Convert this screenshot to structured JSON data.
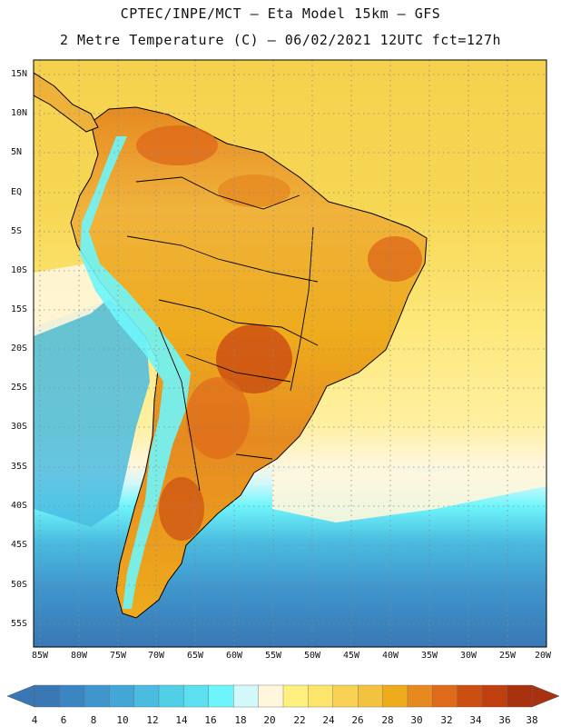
{
  "header": {
    "title_line1": "CPTEC/INPE/MCT –  Eta Model 15km – GFS",
    "title_line2": "2 Metre Temperature (C) – 06/02/2021 12UTC fct=127h"
  },
  "axes": {
    "lat_labels": [
      "15N",
      "10N",
      "5N",
      "EQ",
      "5S",
      "10S",
      "15S",
      "20S",
      "25S",
      "30S",
      "35S",
      "40S",
      "45S",
      "50S",
      "55S"
    ],
    "lon_labels": [
      "85W",
      "80W",
      "75W",
      "70W",
      "65W",
      "60W",
      "55W",
      "50W",
      "45W",
      "40W",
      "35W",
      "30W",
      "25W",
      "20W"
    ]
  },
  "colorbar": {
    "values": [
      "4",
      "6",
      "8",
      "10",
      "12",
      "14",
      "16",
      "18",
      "20",
      "22",
      "24",
      "26",
      "28",
      "30",
      "32",
      "34",
      "36",
      "38"
    ],
    "colors": [
      "#3a78b5",
      "#3b85c2",
      "#3f95cc",
      "#44a6d6",
      "#4bbce0",
      "#51cfe6",
      "#5ce0ef",
      "#6ef5fb",
      "#d3f8fb",
      "#fff6dc",
      "#fff07f",
      "#fde46a",
      "#f9d154",
      "#f3c33f",
      "#eeab1c",
      "#e68a20",
      "#de6a1a",
      "#cc4f12",
      "#bf3f10",
      "#a83110"
    ]
  },
  "map_colors": {
    "ocean_north": "#f5d24e",
    "ocean_mid": "#fde87a",
    "ocean_cream": "#fff6dc",
    "ocean_cool": "#6ef5fb",
    "ocean_cyan": "#4bbce0",
    "ocean_blue": "#3f95cc",
    "ocean_deep": "#3a78b5",
    "land_base": "#eeb23a",
    "land_hot": "#de6a1a",
    "land_hotter": "#cc4f12",
    "andes_cold": "#6ef5fb"
  }
}
